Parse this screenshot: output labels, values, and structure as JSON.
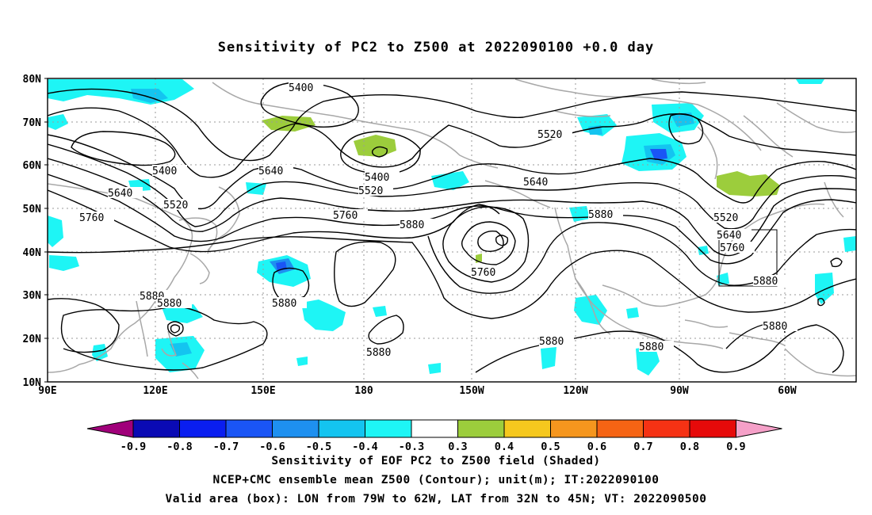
{
  "title": "Sensitivity of PC2 to Z500 at 2022090100 +0.0 day",
  "lat_ticks": [
    "80N",
    "70N",
    "60N",
    "50N",
    "40N",
    "30N",
    "20N",
    "10N"
  ],
  "lon_ticks": [
    "90E",
    "120E",
    "150E",
    "180",
    "150W",
    "120W",
    "90W",
    "60W"
  ],
  "contour_labels": {
    "c5400a": "5400",
    "c5400b": "5400",
    "c5400c": "5400",
    "c5520a": "5520",
    "c5520b": "5520",
    "c5520c": "5520",
    "c5520d": "5520",
    "c5640a": "5640",
    "c5640b": "5640",
    "c5640c": "5640",
    "c5640d": "5640",
    "c5760a": "5760",
    "c5760b": "5760",
    "c5760c": "5760",
    "c5760d": "5760",
    "c5880a": "5880",
    "c5880b": "5880",
    "c5880c": "5880",
    "c5880d": "5880",
    "c5880e": "5880",
    "c5880f": "5880",
    "c5880g": "5880",
    "c5880h": "5880",
    "c5880i": "5880",
    "c5880j": "5880"
  },
  "colorbar": {
    "labels": [
      "-0.9",
      "-0.8",
      "-0.7",
      "-0.6",
      "-0.5",
      "-0.4",
      "-0.3",
      "0.3",
      "0.4",
      "0.5",
      "0.6",
      "0.7",
      "0.8",
      "0.9"
    ],
    "colors": [
      "#a0007a",
      "#0a0ab4",
      "#0a1ef0",
      "#1a55f5",
      "#1e90f0",
      "#14c4f0",
      "#1ef5f5",
      "#ffffff",
      "#9ccd3c",
      "#f5c81e",
      "#f5961e",
      "#f56414",
      "#f53214",
      "#e60a0a",
      "#f5a0c8"
    ]
  },
  "footer": {
    "line1": "Sensitivity of EOF PC2 to Z500 field (Shaded)",
    "line2": "NCEP+CMC ensemble mean Z500 (Contour); unit(m); IT:2022090100",
    "line3": "Valid area (box): LON from 79W to 62W, LAT from 32N to 45N; VT: 2022090500"
  }
}
